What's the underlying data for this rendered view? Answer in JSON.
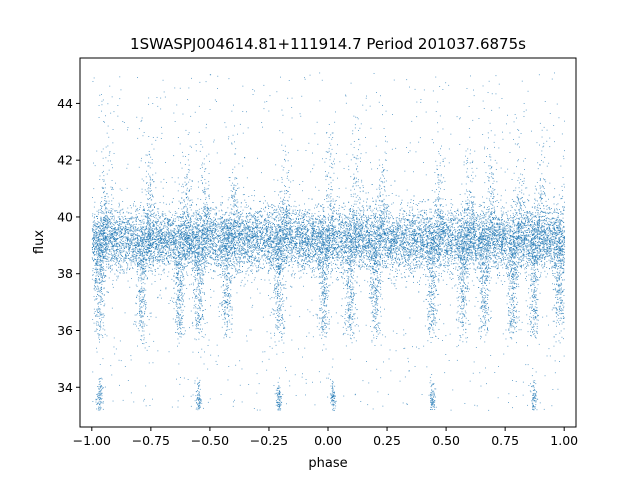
{
  "chart_data": {
    "type": "scatter",
    "title": "1SWASPJ004614.81+111914.7 Period 201037.6875s",
    "xlabel": "phase",
    "ylabel": "flux",
    "xlim": [
      -1.05,
      1.05
    ],
    "ylim": [
      32.6,
      45.6
    ],
    "x_ticks": [
      -1.0,
      -0.75,
      -0.5,
      -0.25,
      0.0,
      0.25,
      0.5,
      0.75,
      1.0
    ],
    "x_tick_labels": [
      "−1.00",
      "−0.75",
      "−0.50",
      "−0.25",
      "0.00",
      "0.25",
      "0.50",
      "0.75",
      "1.00"
    ],
    "y_ticks": [
      34,
      36,
      38,
      40,
      42,
      44
    ],
    "y_tick_labels": [
      "34",
      "36",
      "38",
      "40",
      "42",
      "44"
    ],
    "grid": false,
    "legend": "none",
    "marker_color": "#1f77b4",
    "series": [
      {
        "baseline_flux": 39.2,
        "scatter_core": 0.55,
        "x_range": [
          -1.0,
          1.0
        ],
        "flux_range": [
          33.2,
          45.1
        ],
        "dip_phases": [
          -0.97,
          -0.79,
          -0.63,
          -0.55,
          -0.43,
          -0.21,
          -0.02,
          0.09,
          0.2,
          0.44,
          0.57,
          0.66,
          0.78,
          0.87,
          0.98
        ],
        "deep_dip_phases": [
          -0.97,
          -0.55,
          -0.21,
          0.02,
          0.44,
          0.87
        ],
        "dip_depth_flux": 36.0,
        "deep_dip_flux": 33.6
      }
    ]
  }
}
